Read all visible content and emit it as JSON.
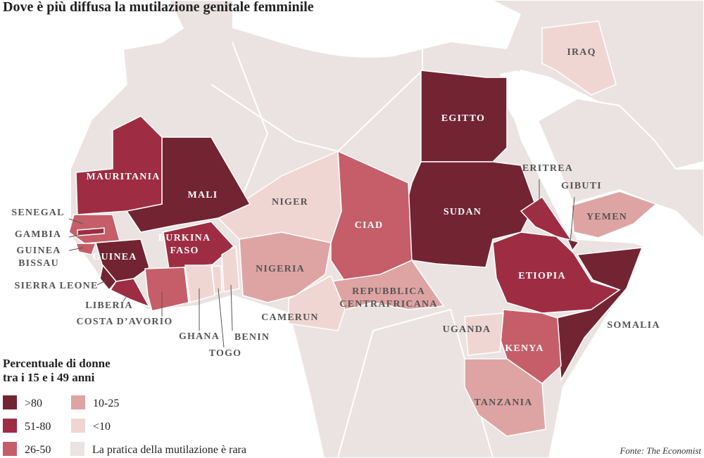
{
  "title": "Dove è più diffusa la mutilazione genitale femminile",
  "countries": [
    {
      "name": [
        "EGITTO"
      ],
      "color": "#722433"
    },
    {
      "name": [
        "SUDAN"
      ],
      "color": "#722433"
    },
    {
      "name": [
        "ERITREA"
      ],
      "color": "#9e2d43"
    },
    {
      "name": [
        "GIBUTI"
      ],
      "color": "#722433"
    },
    {
      "name": [
        "ETIOPIA"
      ],
      "color": "#9e2d43"
    },
    {
      "name": [
        "SOMALIA"
      ],
      "color": "#722433"
    },
    {
      "name": [
        "KENYA"
      ],
      "color": "#c55e68"
    },
    {
      "name": [
        "UGANDA"
      ],
      "color": "#f0d6d3"
    },
    {
      "name": [
        "TANZANIA"
      ],
      "color": "#dea4a3"
    },
    {
      "name": [
        "YEMEN"
      ],
      "color": "#dea4a3"
    },
    {
      "name": [
        "IRAQ"
      ],
      "color": "#f0d6d3"
    },
    {
      "name": [
        "CIAD"
      ],
      "color": "#c55e68"
    },
    {
      "name": [
        "REPUBBLICA",
        "CENTRAFRICANA"
      ],
      "color": "#dea4a3"
    },
    {
      "name": [
        "CAMERUN"
      ],
      "color": "#f0d6d3"
    },
    {
      "name": [
        "NIGERIA"
      ],
      "color": "#dea4a3"
    },
    {
      "name": [
        "NIGER"
      ],
      "color": "#f0d6d3"
    },
    {
      "name": [
        "MALI"
      ],
      "color": "#722433"
    },
    {
      "name": [
        "MAURITANIA"
      ],
      "color": "#9e2d43"
    },
    {
      "name": [
        "SENEGAL"
      ],
      "color": "#c55e68"
    },
    {
      "name": [
        "GAMBIA"
      ],
      "color": "#9e2d43"
    },
    {
      "name": [
        "GUINEA",
        "BISSAU"
      ],
      "color": "#c55e68"
    },
    {
      "name": [
        "GUINEA"
      ],
      "color": "#722433"
    },
    {
      "name": [
        "SIERRA LEONE"
      ],
      "color": "#722433"
    },
    {
      "name": [
        "LIBERIA"
      ],
      "color": "#9e2d43"
    },
    {
      "name": [
        "BURKINA",
        "FASO"
      ],
      "color": "#9e2d43"
    },
    {
      "name": [
        "COSTA D’AVORIO"
      ],
      "color": "#c55e68"
    },
    {
      "name": [
        "GHANA"
      ],
      "color": "#f0d6d3"
    },
    {
      "name": [
        "TOGO"
      ],
      "color": "#f0d6d3"
    },
    {
      "name": [
        "BENIN"
      ],
      "color": "#f0d6d3"
    }
  ],
  "legend": {
    "title": [
      "Percentuale di donne",
      "tra i 15 e i 49 anni"
    ],
    "items": [
      {
        "label": ">80",
        "color": "#722433"
      },
      {
        "label": "51-80",
        "color": "#9e2d43"
      },
      {
        "label": "26-50",
        "color": "#c55e68"
      },
      {
        "label": "10-25",
        "color": "#dea4a3"
      },
      {
        "label": "<10",
        "color": "#f0d6d3"
      },
      {
        "label": "La pratica della mutilazione è rara",
        "color": "#ebe3e1"
      }
    ]
  },
  "source": "Fonte: The Economist"
}
